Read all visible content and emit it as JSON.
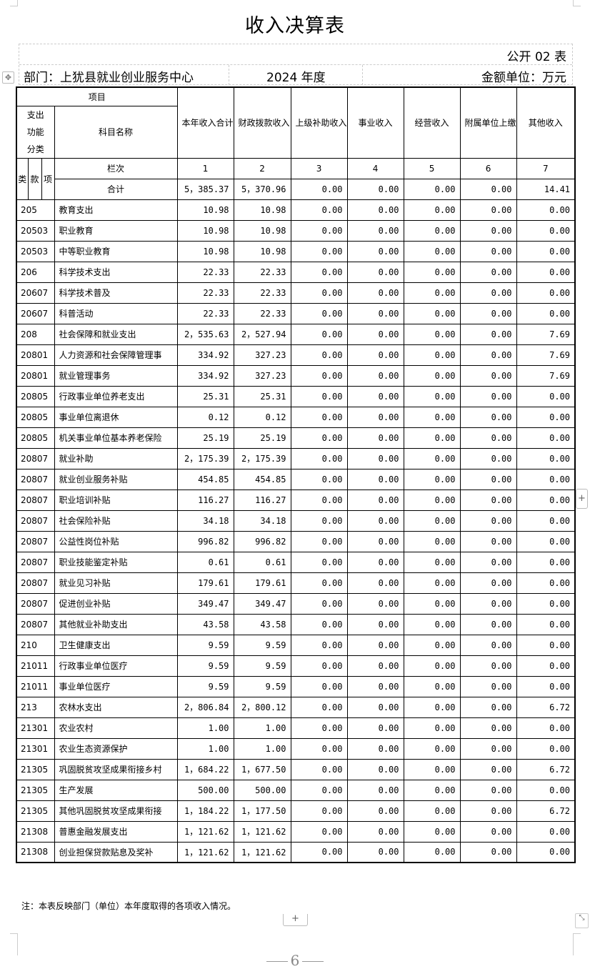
{
  "title": "收入决算表",
  "form_no": "公开 02 表",
  "department": "部门：上犹县就业创业服务中心",
  "year": "2024 年度",
  "unit": "金额单位：万元",
  "headers": {
    "item": "项目",
    "func_class": "支出功能分类",
    "subject_name": "科目名称",
    "lei": "类",
    "kuan": "款",
    "xiang": "项",
    "col_label": "栏次",
    "cols": [
      "本年收入合计",
      "财政拨款收入",
      "上级补助收入",
      "事业收入",
      "经营收入",
      "附属单位上缴收入",
      "其他收入"
    ],
    "col_numbers": [
      "1",
      "2",
      "3",
      "4",
      "5",
      "6",
      "7"
    ]
  },
  "total": {
    "label": "合计",
    "values": [
      "5，385.37",
      "5，370.96",
      "0.00",
      "0.00",
      "0.00",
      "0.00",
      "14.41"
    ]
  },
  "rows": [
    {
      "code": "205",
      "name": "教育支出",
      "values": [
        "10.98",
        "10.98",
        "0.00",
        "0.00",
        "0.00",
        "0.00",
        "0.00"
      ]
    },
    {
      "code": "20503",
      "name": "职业教育",
      "values": [
        "10.98",
        "10.98",
        "0.00",
        "0.00",
        "0.00",
        "0.00",
        "0.00"
      ]
    },
    {
      "code": "20503",
      "name": "中等职业教育",
      "values": [
        "10.98",
        "10.98",
        "0.00",
        "0.00",
        "0.00",
        "0.00",
        "0.00"
      ]
    },
    {
      "code": "206",
      "name": "科学技术支出",
      "values": [
        "22.33",
        "22.33",
        "0.00",
        "0.00",
        "0.00",
        "0.00",
        "0.00"
      ]
    },
    {
      "code": "20607",
      "name": "科学技术普及",
      "values": [
        "22.33",
        "22.33",
        "0.00",
        "0.00",
        "0.00",
        "0.00",
        "0.00"
      ]
    },
    {
      "code": "20607",
      "name": "科普活动",
      "values": [
        "22.33",
        "22.33",
        "0.00",
        "0.00",
        "0.00",
        "0.00",
        "0.00"
      ]
    },
    {
      "code": "208",
      "name": "社会保障和就业支出",
      "values": [
        "2，535.63",
        "2，527.94",
        "0.00",
        "0.00",
        "0.00",
        "0.00",
        "7.69"
      ]
    },
    {
      "code": "20801",
      "name": "人力资源和社会保障管理事",
      "values": [
        "334.92",
        "327.23",
        "0.00",
        "0.00",
        "0.00",
        "0.00",
        "7.69"
      ]
    },
    {
      "code": "20801",
      "name": "就业管理事务",
      "values": [
        "334.92",
        "327.23",
        "0.00",
        "0.00",
        "0.00",
        "0.00",
        "7.69"
      ]
    },
    {
      "code": "20805",
      "name": "行政事业单位养老支出",
      "values": [
        "25.31",
        "25.31",
        "0.00",
        "0.00",
        "0.00",
        "0.00",
        "0.00"
      ]
    },
    {
      "code": "20805",
      "name": "事业单位离退休",
      "values": [
        "0.12",
        "0.12",
        "0.00",
        "0.00",
        "0.00",
        "0.00",
        "0.00"
      ]
    },
    {
      "code": "20805",
      "name": "机关事业单位基本养老保险",
      "values": [
        "25.19",
        "25.19",
        "0.00",
        "0.00",
        "0.00",
        "0.00",
        "0.00"
      ]
    },
    {
      "code": "20807",
      "name": "就业补助",
      "values": [
        "2，175.39",
        "2，175.39",
        "0.00",
        "0.00",
        "0.00",
        "0.00",
        "0.00"
      ]
    },
    {
      "code": "20807",
      "name": "就业创业服务补贴",
      "values": [
        "454.85",
        "454.85",
        "0.00",
        "0.00",
        "0.00",
        "0.00",
        "0.00"
      ]
    },
    {
      "code": "20807",
      "name": "职业培训补贴",
      "values": [
        "116.27",
        "116.27",
        "0.00",
        "0.00",
        "0.00",
        "0.00",
        "0.00"
      ]
    },
    {
      "code": "20807",
      "name": "社会保险补贴",
      "values": [
        "34.18",
        "34.18",
        "0.00",
        "0.00",
        "0.00",
        "0.00",
        "0.00"
      ]
    },
    {
      "code": "20807",
      "name": "公益性岗位补贴",
      "values": [
        "996.82",
        "996.82",
        "0.00",
        "0.00",
        "0.00",
        "0.00",
        "0.00"
      ]
    },
    {
      "code": "20807",
      "name": "职业技能鉴定补贴",
      "values": [
        "0.61",
        "0.61",
        "0.00",
        "0.00",
        "0.00",
        "0.00",
        "0.00"
      ]
    },
    {
      "code": "20807",
      "name": "就业见习补贴",
      "values": [
        "179.61",
        "179.61",
        "0.00",
        "0.00",
        "0.00",
        "0.00",
        "0.00"
      ]
    },
    {
      "code": "20807",
      "name": "促进创业补贴",
      "values": [
        "349.47",
        "349.47",
        "0.00",
        "0.00",
        "0.00",
        "0.00",
        "0.00"
      ]
    },
    {
      "code": "20807",
      "name": "其他就业补助支出",
      "values": [
        "43.58",
        "43.58",
        "0.00",
        "0.00",
        "0.00",
        "0.00",
        "0.00"
      ]
    },
    {
      "code": "210",
      "name": "卫生健康支出",
      "values": [
        "9.59",
        "9.59",
        "0.00",
        "0.00",
        "0.00",
        "0.00",
        "0.00"
      ]
    },
    {
      "code": "21011",
      "name": "行政事业单位医疗",
      "values": [
        "9.59",
        "9.59",
        "0.00",
        "0.00",
        "0.00",
        "0.00",
        "0.00"
      ]
    },
    {
      "code": "21011",
      "name": "事业单位医疗",
      "values": [
        "9.59",
        "9.59",
        "0.00",
        "0.00",
        "0.00",
        "0.00",
        "0.00"
      ]
    },
    {
      "code": "213",
      "name": "农林水支出",
      "values": [
        "2，806.84",
        "2，800.12",
        "0.00",
        "0.00",
        "0.00",
        "0.00",
        "6.72"
      ]
    },
    {
      "code": "21301",
      "name": "农业农村",
      "values": [
        "1.00",
        "1.00",
        "0.00",
        "0.00",
        "0.00",
        "0.00",
        "0.00"
      ]
    },
    {
      "code": "21301",
      "name": "农业生态资源保护",
      "values": [
        "1.00",
        "1.00",
        "0.00",
        "0.00",
        "0.00",
        "0.00",
        "0.00"
      ]
    },
    {
      "code": "21305",
      "name": "巩固脱贫攻坚成果衔接乡村",
      "values": [
        "1，684.22",
        "1，677.50",
        "0.00",
        "0.00",
        "0.00",
        "0.00",
        "6.72"
      ]
    },
    {
      "code": "21305",
      "name": "生产发展",
      "values": [
        "500.00",
        "500.00",
        "0.00",
        "0.00",
        "0.00",
        "0.00",
        "0.00"
      ]
    },
    {
      "code": "21305",
      "name": "其他巩固脱贫攻坚成果衔接",
      "values": [
        "1，184.22",
        "1，177.50",
        "0.00",
        "0.00",
        "0.00",
        "0.00",
        "6.72"
      ]
    },
    {
      "code": "21308",
      "name": "普惠金融发展支出",
      "values": [
        "1，121.62",
        "1，121.62",
        "0.00",
        "0.00",
        "0.00",
        "0.00",
        "0.00"
      ]
    },
    {
      "code": "21308",
      "name": "创业担保贷款贴息及奖补",
      "values": [
        "1，121.62",
        "1，121.62",
        "0.00",
        "0.00",
        "0.00",
        "0.00",
        "0.00"
      ]
    }
  ],
  "note": "注：本表反映部门（单位）本年度取得的各项收入情况。",
  "page_number": "6",
  "controls": {
    "add_row": "+",
    "add_col": "+",
    "move": "✥",
    "resize": "⤡"
  }
}
